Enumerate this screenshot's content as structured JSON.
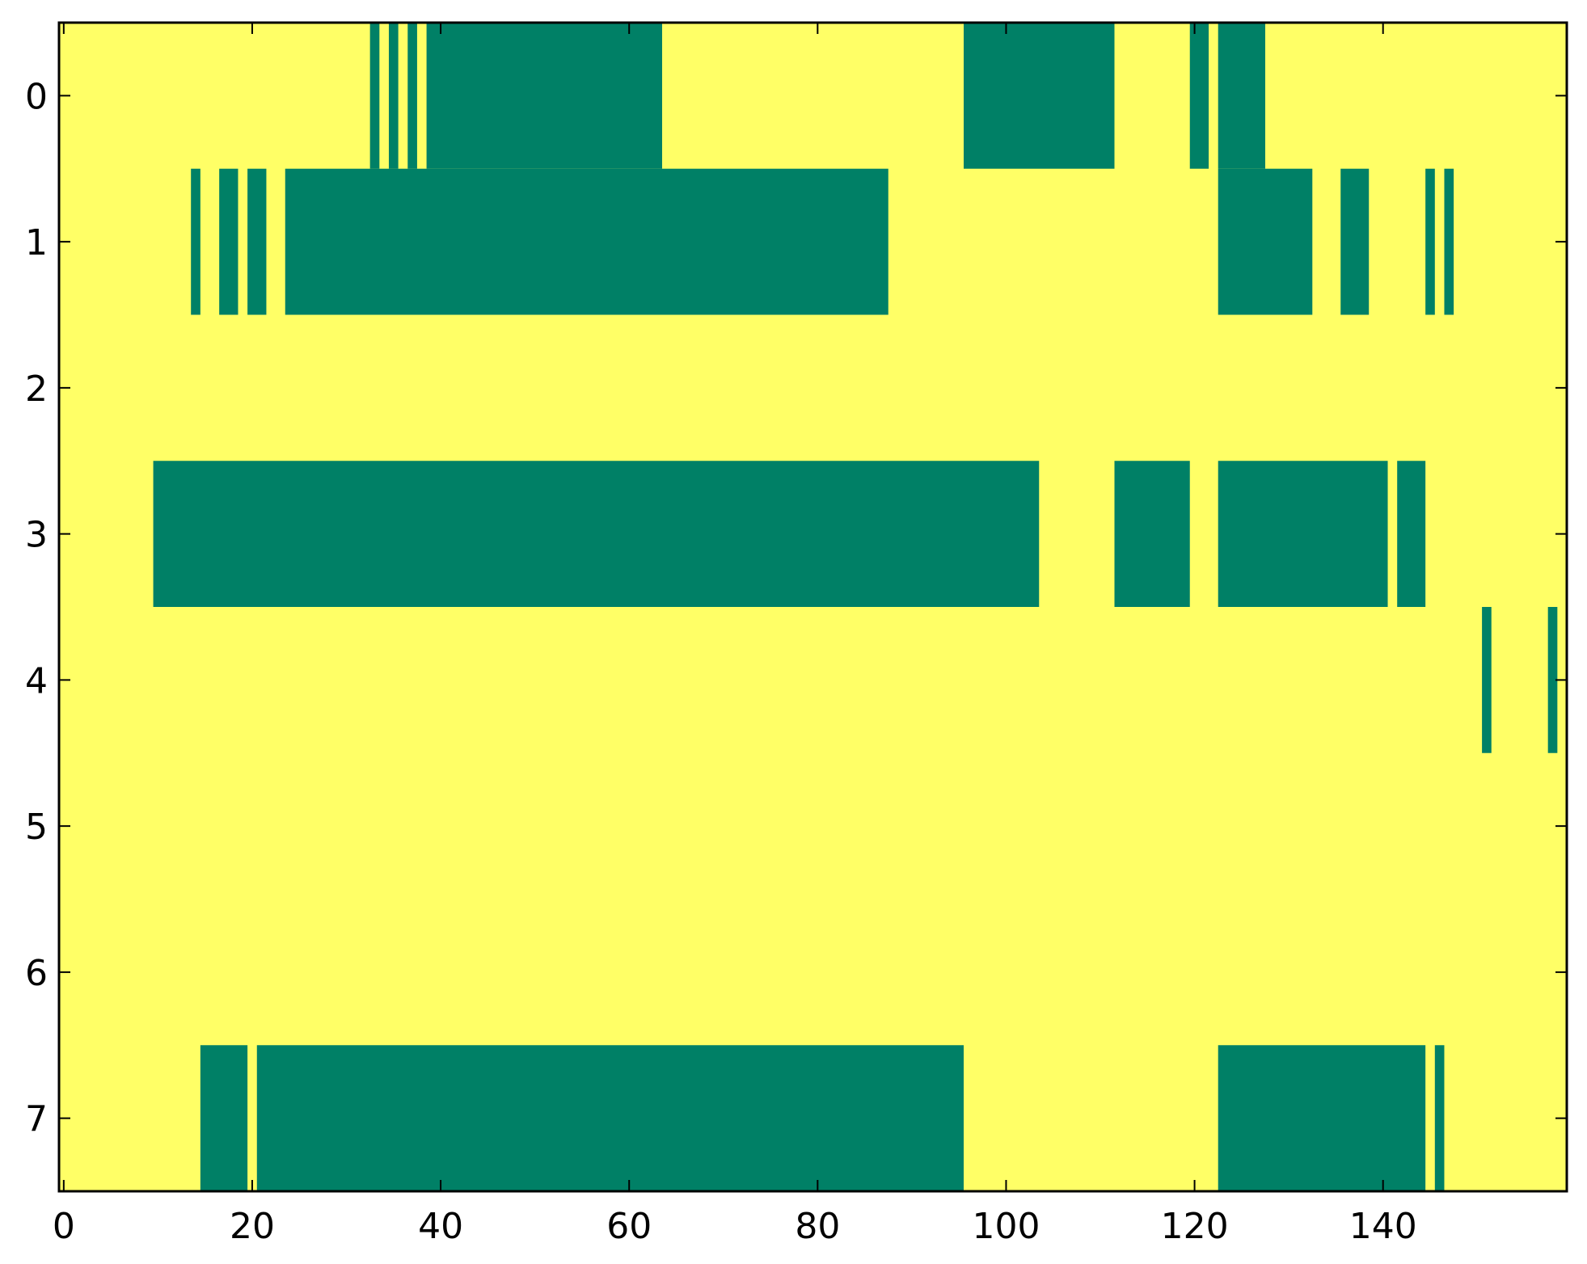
{
  "chart_data": {
    "type": "heatmap",
    "title": "",
    "xlabel": "",
    "ylabel": "",
    "xlim": [
      -0.5,
      159.5
    ],
    "ylim": [
      7.5,
      -0.5
    ],
    "x_ticks": [
      0,
      20,
      40,
      60,
      80,
      100,
      120,
      140
    ],
    "x_tick_labels": [
      "0",
      "20",
      "40",
      "60",
      "80",
      "100",
      "120",
      "140"
    ],
    "y_ticks": [
      0,
      1,
      2,
      3,
      4,
      5,
      6,
      7
    ],
    "y_tick_labels": [
      "0",
      "1",
      "2",
      "3",
      "4",
      "5",
      "6",
      "7"
    ],
    "grid": false,
    "colors": {
      "background": "#ffff66",
      "filled": "#008066"
    },
    "rows": [
      {
        "row": 0,
        "runs": [
          [
            33,
            33
          ],
          [
            35,
            35
          ],
          [
            37,
            37
          ],
          [
            39,
            63
          ],
          [
            96,
            111
          ],
          [
            120,
            121
          ],
          [
            123,
            127
          ]
        ]
      },
      {
        "row": 1,
        "runs": [
          [
            14,
            14
          ],
          [
            17,
            18
          ],
          [
            20,
            21
          ],
          [
            24,
            87
          ],
          [
            123,
            132
          ],
          [
            136,
            138
          ],
          [
            145,
            145
          ],
          [
            147,
            147
          ]
        ]
      },
      {
        "row": 2,
        "runs": []
      },
      {
        "row": 3,
        "runs": [
          [
            10,
            103
          ],
          [
            112,
            119
          ],
          [
            123,
            140
          ],
          [
            142,
            144
          ]
        ]
      },
      {
        "row": 4,
        "runs": [
          [
            151,
            151
          ],
          [
            158,
            158
          ]
        ]
      },
      {
        "row": 5,
        "runs": []
      },
      {
        "row": 6,
        "runs": []
      },
      {
        "row": 7,
        "runs": [
          [
            15,
            19
          ],
          [
            21,
            95
          ],
          [
            123,
            144
          ],
          [
            146,
            146
          ]
        ]
      }
    ]
  }
}
